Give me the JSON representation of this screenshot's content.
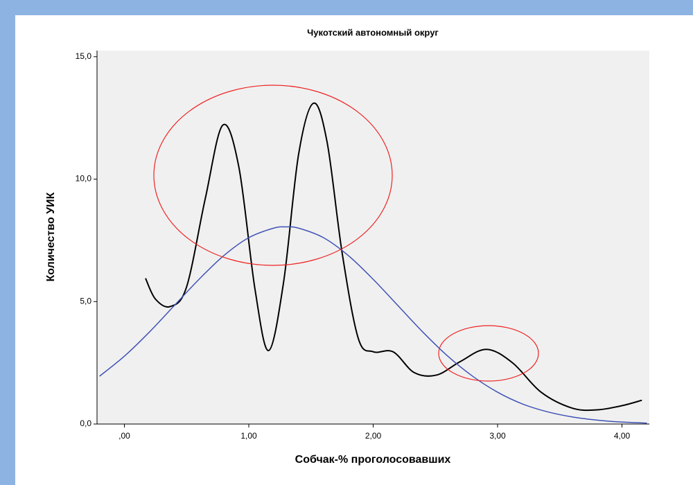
{
  "chart_data": {
    "type": "line",
    "title": "Чукотский автономный округ",
    "x_label": "Собчак-% проголосовавших",
    "y_label": "Количество УИК",
    "xlim": [
      -0.22,
      4.22
    ],
    "ylim": [
      0,
      15.25
    ],
    "xticks": [
      {
        "value": 0,
        "label": ",00"
      },
      {
        "value": 1,
        "label": "1,00"
      },
      {
        "value": 2,
        "label": "2,00"
      },
      {
        "value": 3,
        "label": "3,00"
      },
      {
        "value": 4,
        "label": "4,00"
      }
    ],
    "yticks": [
      {
        "value": 0,
        "label": "0,0"
      },
      {
        "value": 5,
        "label": "5,0"
      },
      {
        "value": 10,
        "label": "10,0"
      },
      {
        "value": 15,
        "label": "15,0"
      }
    ],
    "series": [
      {
        "color": "#000000",
        "x": [
          0.17,
          0.25,
          0.37,
          0.5,
          0.65,
          0.79,
          0.92,
          1.05,
          1.16,
          1.28,
          1.4,
          1.52,
          1.63,
          1.75,
          1.88,
          2.0,
          2.16,
          2.33,
          2.51,
          2.7,
          2.91,
          3.12,
          3.35,
          3.6,
          3.8,
          4.0,
          4.16
        ],
        "values": [
          5.95,
          5.1,
          4.8,
          5.6,
          9.2,
          12.2,
          10.5,
          5.5,
          3.0,
          5.8,
          11.0,
          13.1,
          11.5,
          7.0,
          3.5,
          2.95,
          2.95,
          2.1,
          2.0,
          2.55,
          3.05,
          2.5,
          1.3,
          0.65,
          0.58,
          0.75,
          0.97
        ]
      },
      {
        "color": "#3f51b5",
        "x": [
          -0.2,
          0.0,
          0.2,
          0.4,
          0.6,
          0.8,
          1.0,
          1.2,
          1.3,
          1.4,
          1.6,
          1.8,
          2.0,
          2.2,
          2.4,
          2.6,
          2.8,
          3.0,
          3.2,
          3.4,
          3.6,
          3.8,
          4.0,
          4.2
        ],
        "values": [
          1.95,
          2.77,
          3.75,
          4.83,
          5.91,
          6.88,
          7.61,
          8.0,
          8.05,
          8.0,
          7.61,
          6.88,
          5.91,
          4.83,
          3.75,
          2.77,
          1.95,
          1.3,
          0.82,
          0.5,
          0.29,
          0.16,
          0.08,
          0.04
        ]
      }
    ]
  }
}
